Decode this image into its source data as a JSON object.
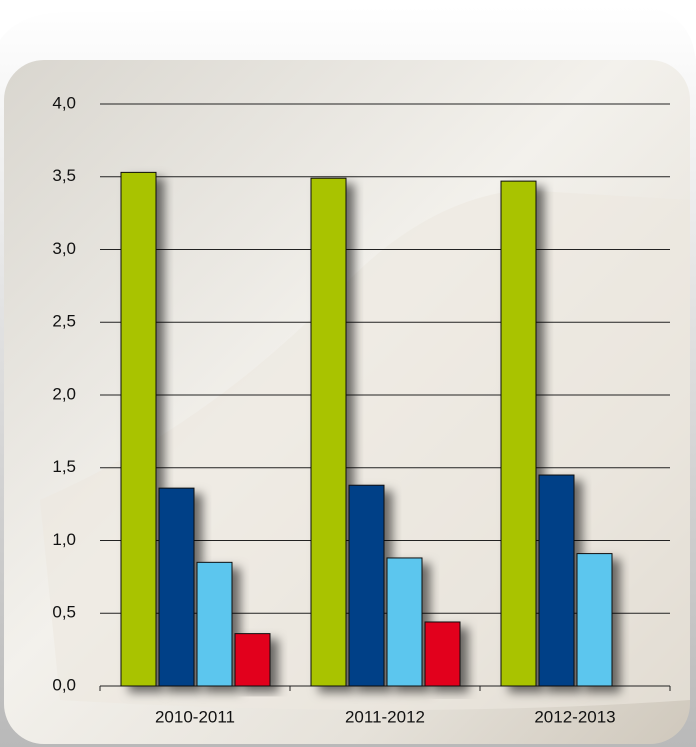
{
  "chart_data": {
    "type": "bar",
    "categories": [
      "2010-2011",
      "2011-2012",
      "2012-2013"
    ],
    "series": [
      {
        "color": "#a9c300",
        "values": [
          3.53,
          3.49,
          3.47
        ]
      },
      {
        "color": "#003f87",
        "values": [
          1.36,
          1.38,
          1.45
        ]
      },
      {
        "color": "#5bc6ee",
        "values": [
          0.85,
          0.88,
          0.91
        ]
      },
      {
        "color": "#e2001a",
        "values": [
          0.36,
          0.44,
          null
        ]
      }
    ],
    "ylim": [
      0,
      4
    ],
    "yticks": [
      {
        "value": 0,
        "label": "0,0"
      },
      {
        "value": 0.5,
        "label": "0,5"
      },
      {
        "value": 1,
        "label": "1,0"
      },
      {
        "value": 1.5,
        "label": "1,5"
      },
      {
        "value": 2,
        "label": "2,0"
      },
      {
        "value": 2.5,
        "label": "2,5"
      },
      {
        "value": 3,
        "label": "3,0"
      },
      {
        "value": 3.5,
        "label": "3,5"
      },
      {
        "value": 4,
        "label": "4,0"
      }
    ],
    "grid": true
  }
}
